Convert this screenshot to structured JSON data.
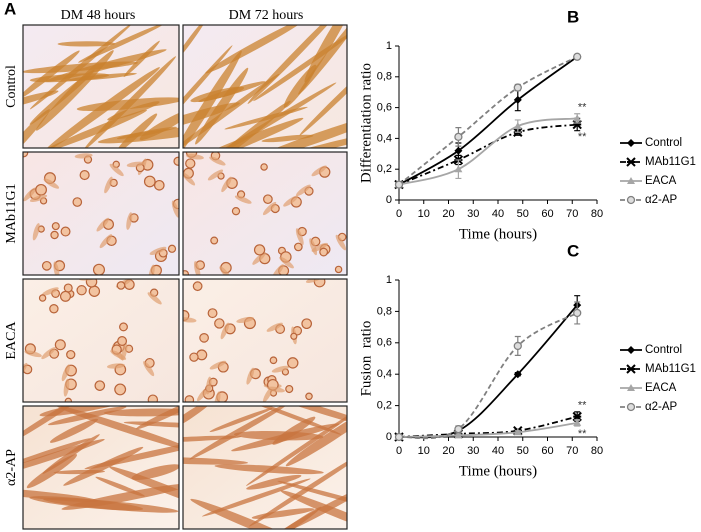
{
  "panel_a": {
    "label": "A",
    "columns": [
      "DM 48 hours",
      "DM 72 hours"
    ],
    "rows": [
      "Control",
      "MAb11G1",
      "EACA",
      "α2-AP"
    ]
  },
  "chart_data": [
    {
      "type": "line",
      "panel_label": "B",
      "x_label": "Time (hours)",
      "y_label": "Differentiation ratio",
      "x": [
        0,
        24,
        48,
        72
      ],
      "xlim": [
        0,
        80
      ],
      "xticks": [
        0,
        10,
        20,
        30,
        40,
        50,
        60,
        70,
        80
      ],
      "ylim": [
        0,
        1
      ],
      "yticks": [
        0,
        {
          "value": 0.2,
          "label": "0,2"
        },
        {
          "value": 0.4,
          "label": "0,4"
        },
        {
          "value": 0.6,
          "label": "0,6"
        },
        {
          "value": 0.8,
          "label": "0,8"
        },
        1
      ],
      "series": [
        {
          "name": "Control",
          "color": "#000000",
          "dash": "solid",
          "marker": "diamond",
          "values": [
            0.1,
            0.32,
            0.65,
            0.93
          ],
          "errors": [
            0.01,
            0.05,
            0.07,
            0.01
          ]
        },
        {
          "name": "MAb11G1",
          "color": "#000000",
          "dash": "dashdot",
          "marker": "star",
          "values": [
            0.1,
            0.26,
            0.44,
            0.49
          ],
          "errors": [
            0.01,
            0.03,
            0.02,
            0.04
          ]
        },
        {
          "name": "EACA",
          "color": "#a6a6a6",
          "dash": "solid",
          "marker": "triangle",
          "values": [
            0.1,
            0.2,
            0.48,
            0.53
          ],
          "errors": [
            0.01,
            0.06,
            0.04,
            0.03
          ]
        },
        {
          "name": "α2-AP",
          "color": "#808080",
          "dash": "dashed",
          "marker": "circle",
          "values": [
            0.1,
            0.41,
            0.73,
            0.93
          ],
          "errors": [
            0.01,
            0.06,
            0.02,
            0.01
          ]
        }
      ],
      "annotations": [
        {
          "text": "**",
          "x": 72,
          "y": 0.6
        },
        {
          "text": "**",
          "x": 72,
          "y": 0.41
        }
      ]
    },
    {
      "type": "line",
      "panel_label": "C",
      "x_label": "Time (hours)",
      "y_label": "Fusion  ratio",
      "x": [
        0,
        24,
        48,
        72
      ],
      "xlim": [
        0,
        80
      ],
      "xticks": [
        0,
        10,
        20,
        30,
        40,
        50,
        60,
        70,
        80
      ],
      "ylim": [
        0,
        1
      ],
      "yticks": [
        0,
        {
          "value": 0.2,
          "label": "0,2"
        },
        {
          "value": 0.4,
          "label": "0,4"
        },
        {
          "value": 0.6,
          "label": "0,6"
        },
        {
          "value": 0.8,
          "label": "0,8"
        },
        1
      ],
      "series": [
        {
          "name": "Control",
          "color": "#000000",
          "dash": "solid",
          "marker": "diamond",
          "values": [
            0,
            0.04,
            0.4,
            0.84
          ],
          "errors": [
            0,
            0.01,
            0.01,
            0.06
          ]
        },
        {
          "name": "MAb11G1",
          "color": "#000000",
          "dash": "dashdot",
          "marker": "star",
          "values": [
            0,
            0.02,
            0.04,
            0.13
          ],
          "errors": [
            0,
            0.01,
            0.01,
            0.03
          ]
        },
        {
          "name": "EACA",
          "color": "#a6a6a6",
          "dash": "solid",
          "marker": "triangle",
          "values": [
            0,
            0.01,
            0.03,
            0.09
          ],
          "errors": [
            0,
            0.01,
            0.01,
            0.02
          ]
        },
        {
          "name": "α2-AP",
          "color": "#808080",
          "dash": "dashed",
          "marker": "circle",
          "values": [
            0,
            0.05,
            0.58,
            0.79
          ],
          "errors": [
            0,
            0.02,
            0.06,
            0.07
          ]
        }
      ],
      "annotations": [
        {
          "text": "**",
          "x": 72,
          "y": 0.2
        },
        {
          "text": "**",
          "x": 72,
          "y": 0.02
        }
      ]
    }
  ]
}
